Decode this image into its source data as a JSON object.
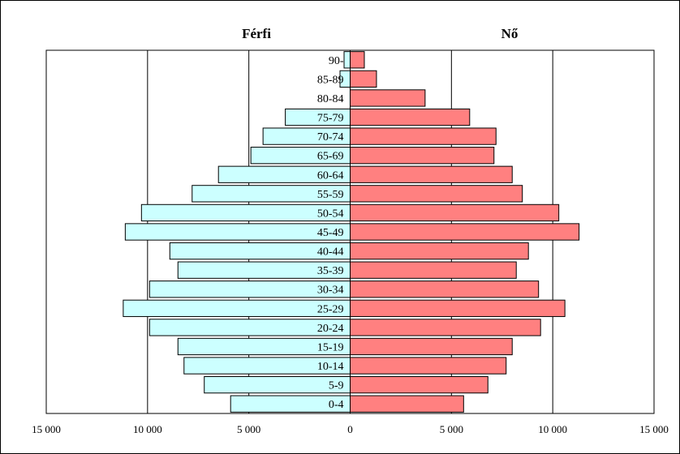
{
  "chart_data": {
    "type": "bar",
    "orientation": "horizontal",
    "categories": [
      "0-4",
      "5-9",
      "10-14",
      "15-19",
      "20-24",
      "25-29",
      "30-34",
      "35-39",
      "40-44",
      "45-49",
      "50-54",
      "55-59",
      "60-64",
      "65-69",
      "70-74",
      "75-79",
      "80-84",
      "85-89",
      "90-"
    ],
    "series": [
      {
        "name": "Férfi",
        "color": "#ccffff",
        "values": [
          5900,
          7200,
          8200,
          8500,
          9900,
          11200,
          9900,
          8500,
          8900,
          11100,
          10300,
          7800,
          6500,
          4900,
          4300,
          3200,
          0,
          500,
          300
        ]
      },
      {
        "name": "Nő",
        "color": "#ff8080",
        "values": [
          5600,
          6800,
          7700,
          8000,
          9400,
          10600,
          9300,
          8200,
          8800,
          11300,
          10300,
          8500,
          8000,
          7100,
          7200,
          5900,
          3700,
          1300,
          700
        ]
      }
    ],
    "xlim": [
      -15000,
      15000
    ],
    "xticks": [
      -15000,
      -10000,
      -5000,
      0,
      5000,
      10000,
      15000
    ],
    "xtick_labels": [
      "15 000",
      "10 000",
      "5 000",
      "0",
      "5 000",
      "10 000",
      "15 000"
    ],
    "grid": true,
    "bar_stroke": "#000000"
  }
}
